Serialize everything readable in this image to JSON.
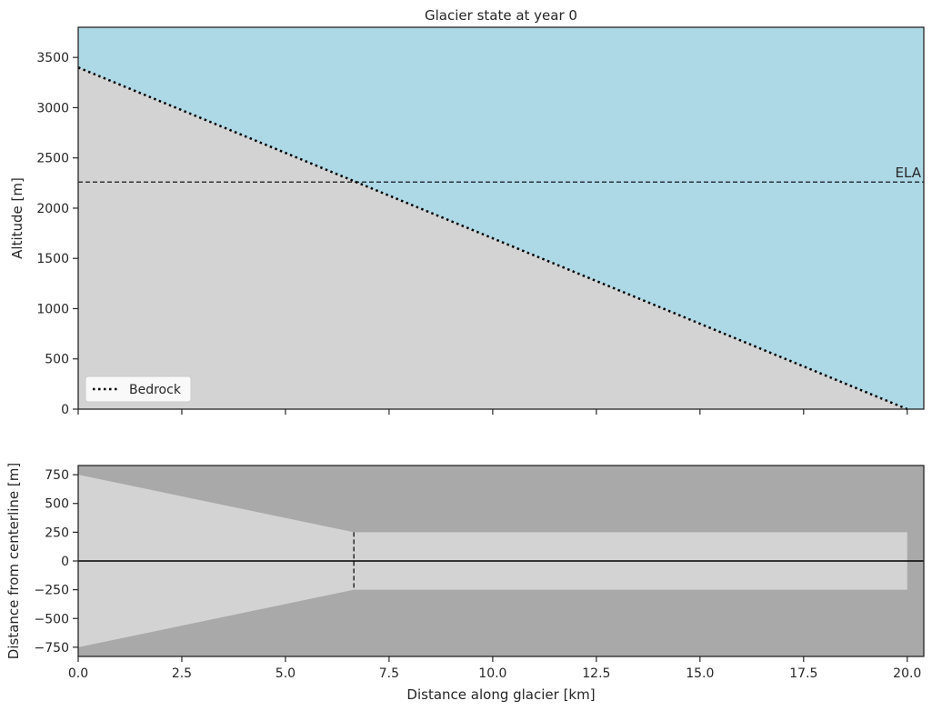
{
  "chart_data": [
    {
      "type": "area",
      "title": "Glacier state at year 0",
      "xlabel": "",
      "ylabel": "Altitude [m]",
      "xlim": [
        0,
        20.4
      ],
      "ylim": [
        0,
        3800
      ],
      "xticks": [
        0,
        2.5,
        5,
        7.5,
        10,
        12.5,
        15,
        17.5,
        20
      ],
      "yticks": [
        0,
        500,
        1000,
        1500,
        2000,
        2500,
        3000,
        3500
      ],
      "grid": false,
      "colors": {
        "sky": "#add8e6",
        "rock": "#d3d3d3",
        "line": "#000000"
      },
      "series": [
        {
          "name": "Bedrock",
          "style": "dotted",
          "x": [
            0,
            20
          ],
          "y": [
            3400,
            0
          ]
        }
      ],
      "ela": {
        "label": "ELA",
        "y": 2260
      },
      "legend": {
        "position": "lower-left",
        "entries": [
          "Bedrock"
        ]
      }
    },
    {
      "type": "area",
      "title": "",
      "xlabel": "Distance along glacier [km]",
      "ylabel": "Distance from centerline [m]",
      "xlim": [
        0,
        20.4
      ],
      "ylim": [
        -830,
        830
      ],
      "xticks": [
        0,
        2.5,
        5,
        7.5,
        10,
        12.5,
        15,
        17.5,
        20
      ],
      "xtick_labels": [
        "0.0",
        "2.5",
        "5.0",
        "7.5",
        "10.0",
        "12.5",
        "15.0",
        "17.5",
        "20.0"
      ],
      "yticks": [
        -750,
        -500,
        -250,
        0,
        250,
        500,
        750
      ],
      "grid": false,
      "colors": {
        "background": "#a9a9a9",
        "valley": "#d3d3d3",
        "line": "#000000"
      },
      "valley_outline": {
        "x": [
          0,
          6.65,
          20,
          20,
          6.65,
          0
        ],
        "y": [
          750,
          250,
          250,
          -250,
          -250,
          -750
        ]
      },
      "centerline": 0,
      "ela_x": 6.65
    }
  ]
}
